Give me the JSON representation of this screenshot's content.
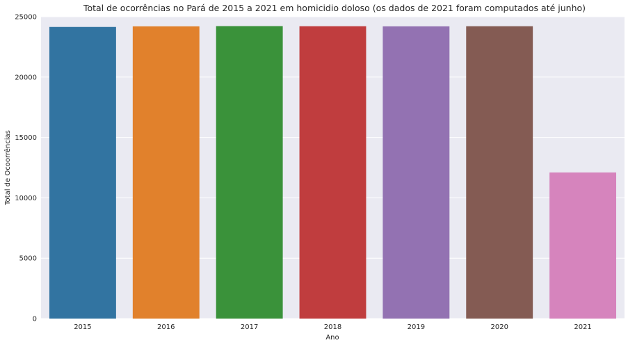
{
  "chart_data": {
    "type": "bar",
    "title": "Total de ocorrências no Pará de 2015 a 2021 em homicidio doloso (os dados de 2021 foram computados até junho)",
    "xlabel": "Ano",
    "ylabel": "Total de Ocoorrências",
    "categories": [
      "2015",
      "2016",
      "2017",
      "2018",
      "2019",
      "2020",
      "2021"
    ],
    "values": [
      24150,
      24200,
      24220,
      24210,
      24200,
      24210,
      12100
    ],
    "colors": [
      "#3274a1",
      "#e1812c",
      "#3a923a",
      "#c03d3e",
      "#9372b2",
      "#845b53",
      "#d684bd"
    ],
    "ylim": [
      0,
      25000
    ],
    "yticks": [
      0,
      5000,
      10000,
      15000,
      20000,
      25000
    ],
    "ytick_labels": [
      "0",
      "5000",
      "10000",
      "15000",
      "20000",
      "25000"
    ],
    "grid": true,
    "background": "#eaeaf2"
  }
}
